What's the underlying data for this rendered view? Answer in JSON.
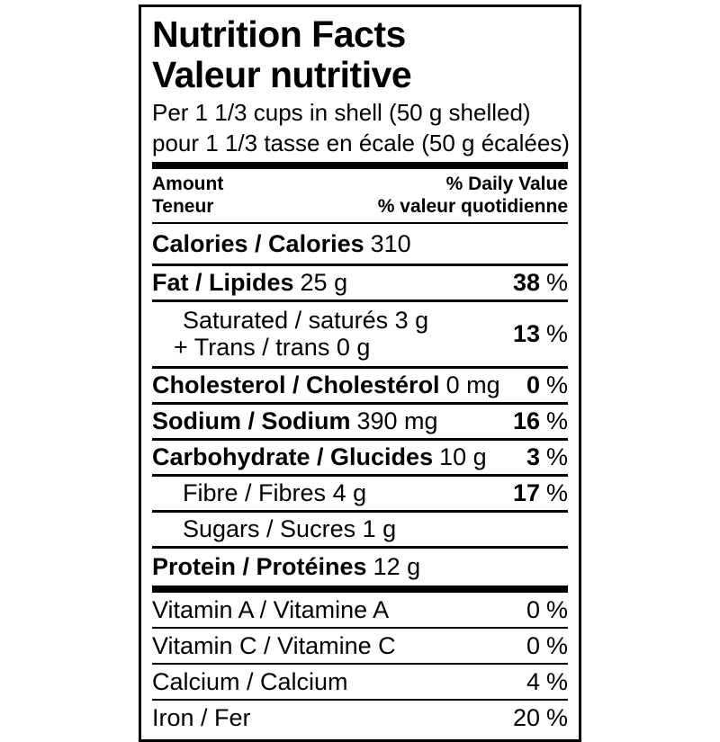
{
  "label": {
    "title_en": "Nutrition Facts",
    "title_fr": "Valeur nutritive",
    "serving_en": "Per 1 1/3 cups in shell (50 g shelled)",
    "serving_fr": "pour 1 1/3 tasse en écale (50 g écalées)",
    "percent_symbol": "%",
    "header": {
      "amount_en": "Amount",
      "amount_fr": "Teneur",
      "daily_value_en": "% Daily Value",
      "daily_value_fr": "% valeur quotidienne"
    },
    "rows": {
      "calories": {
        "name": "Calories / Calories",
        "value": "310"
      },
      "fat": {
        "name": "Fat / Lipides",
        "value": "25 g",
        "pct": "38"
      },
      "saturated": {
        "line1": "Saturated / saturés 3 g",
        "line2": "+ Trans / trans 0 g",
        "pct": "13"
      },
      "cholesterol": {
        "name": "Cholesterol / Cholestérol",
        "value": "0 mg",
        "pct": "0"
      },
      "sodium": {
        "name": "Sodium / Sodium",
        "value": "390 mg",
        "pct": "16"
      },
      "carbohydrate": {
        "name": "Carbohydrate / Glucides",
        "value": "10 g",
        "pct": "3"
      },
      "fibre": {
        "name": "Fibre / Fibres",
        "value": "4 g",
        "pct": "17"
      },
      "sugars": {
        "name": "Sugars / Sucres",
        "value": "1 g"
      },
      "protein": {
        "name": "Protein / Protéines",
        "value": "12 g"
      }
    },
    "micronutrients": {
      "vitamin_a": {
        "name": "Vitamin A / Vitamine A",
        "pct": "0"
      },
      "vitamin_c": {
        "name": "Vitamin C / Vitamine C",
        "pct": "0"
      },
      "calcium": {
        "name": "Calcium / Calcium",
        "pct": "4"
      },
      "iron": {
        "name": "Iron / Fer",
        "pct": "20"
      }
    },
    "colors": {
      "text": "#000000",
      "background": "#ffffff"
    }
  }
}
